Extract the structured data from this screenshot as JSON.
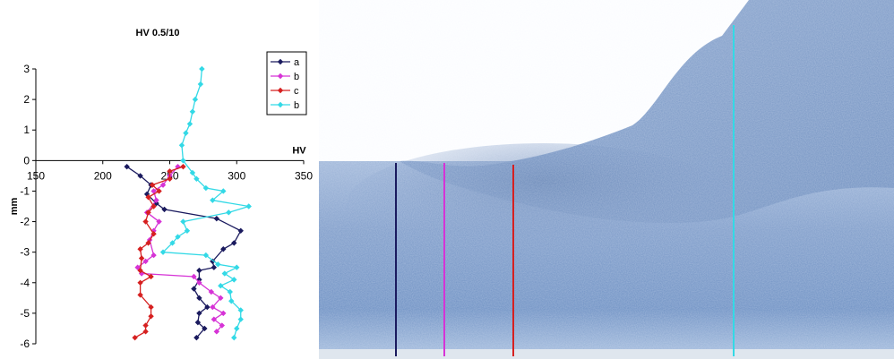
{
  "chart_data": {
    "type": "line",
    "title": "HV 0.5/10",
    "xlabel": "HV",
    "ylabel": "mm",
    "xlim": [
      150,
      350
    ],
    "ylim": [
      -6,
      3
    ],
    "xticks": [
      "150",
      "200",
      "250",
      "300",
      "350"
    ],
    "yticks": [
      "3",
      "2",
      "1",
      "0",
      "-1",
      "-2",
      "-3",
      "-4",
      "-5",
      "-6"
    ],
    "grid": false,
    "legend_position": "top-right",
    "series": [
      {
        "name": "a",
        "color": "#1a1a5e",
        "points": [
          [
            218,
            -0.2
          ],
          [
            228,
            -0.5
          ],
          [
            236,
            -0.8
          ],
          [
            233,
            -1.1
          ],
          [
            240,
            -1.4
          ],
          [
            246,
            -1.6
          ],
          [
            285,
            -1.9
          ],
          [
            303,
            -2.3
          ],
          [
            298,
            -2.7
          ],
          [
            290,
            -2.9
          ],
          [
            282,
            -3.3
          ],
          [
            283,
            -3.5
          ],
          [
            272,
            -3.6
          ],
          [
            272,
            -3.9
          ],
          [
            268,
            -4.2
          ],
          [
            272,
            -4.5
          ],
          [
            278,
            -4.8
          ],
          [
            272,
            -5.0
          ],
          [
            271,
            -5.3
          ],
          [
            276,
            -5.5
          ],
          [
            270,
            -5.8
          ]
        ]
      },
      {
        "name": "b",
        "color": "#d633d6",
        "points": [
          [
            256,
            -0.2
          ],
          [
            250,
            -0.5
          ],
          [
            245,
            -0.8
          ],
          [
            238,
            -1.0
          ],
          [
            240,
            -1.3
          ],
          [
            233,
            -1.7
          ],
          [
            242,
            -2.0
          ],
          [
            238,
            -2.3
          ],
          [
            235,
            -2.6
          ],
          [
            238,
            -3.1
          ],
          [
            232,
            -3.3
          ],
          [
            226,
            -3.5
          ],
          [
            229,
            -3.7
          ],
          [
            268,
            -3.8
          ],
          [
            272,
            -4.0
          ],
          [
            281,
            -4.3
          ],
          [
            288,
            -4.5
          ],
          [
            282,
            -4.8
          ],
          [
            290,
            -5.0
          ],
          [
            283,
            -5.2
          ],
          [
            289,
            -5.4
          ],
          [
            285,
            -5.6
          ]
        ]
      },
      {
        "name": "c",
        "color": "#d62020",
        "points": [
          [
            260,
            -0.2
          ],
          [
            250,
            -0.35
          ],
          [
            250,
            -0.6
          ],
          [
            237,
            -0.8
          ],
          [
            242,
            -1.0
          ],
          [
            234,
            -1.2
          ],
          [
            238,
            -1.5
          ],
          [
            234,
            -1.7
          ],
          [
            232,
            -2.0
          ],
          [
            238,
            -2.4
          ],
          [
            234,
            -2.7
          ],
          [
            228,
            -2.9
          ],
          [
            229,
            -3.2
          ],
          [
            228,
            -3.6
          ],
          [
            236,
            -3.8
          ],
          [
            228,
            -4.0
          ],
          [
            228,
            -4.4
          ],
          [
            236,
            -4.8
          ],
          [
            236,
            -5.1
          ],
          [
            232,
            -5.4
          ],
          [
            232,
            -5.6
          ],
          [
            224,
            -5.8
          ]
        ]
      },
      {
        "name": "b",
        "color": "#33d9e6",
        "points": [
          [
            274,
            3.0
          ],
          [
            273,
            2.5
          ],
          [
            269,
            2.0
          ],
          [
            267,
            1.6
          ],
          [
            265,
            1.2
          ],
          [
            262,
            0.9
          ],
          [
            259,
            0.5
          ],
          [
            260,
            0.0
          ],
          [
            267,
            -0.4
          ],
          [
            270,
            -0.6
          ],
          [
            277,
            -0.9
          ],
          [
            290,
            -1.0
          ],
          [
            282,
            -1.3
          ],
          [
            309,
            -1.5
          ],
          [
            294,
            -1.7
          ],
          [
            260,
            -2.0
          ],
          [
            263,
            -2.3
          ],
          [
            256,
            -2.5
          ],
          [
            252,
            -2.7
          ],
          [
            245,
            -3.0
          ],
          [
            277,
            -3.1
          ],
          [
            286,
            -3.4
          ],
          [
            300,
            -3.5
          ],
          [
            291,
            -3.7
          ],
          [
            298,
            -3.9
          ],
          [
            288,
            -4.1
          ],
          [
            295,
            -4.3
          ],
          [
            296,
            -4.6
          ],
          [
            303,
            -4.9
          ],
          [
            303,
            -5.2
          ],
          [
            300,
            -5.5
          ],
          [
            298,
            -5.8
          ]
        ]
      }
    ]
  },
  "photo": {
    "vertical_line_colors": [
      "#1a1a5e",
      "#d633d6",
      "#d62020",
      "#33d9e6"
    ]
  }
}
